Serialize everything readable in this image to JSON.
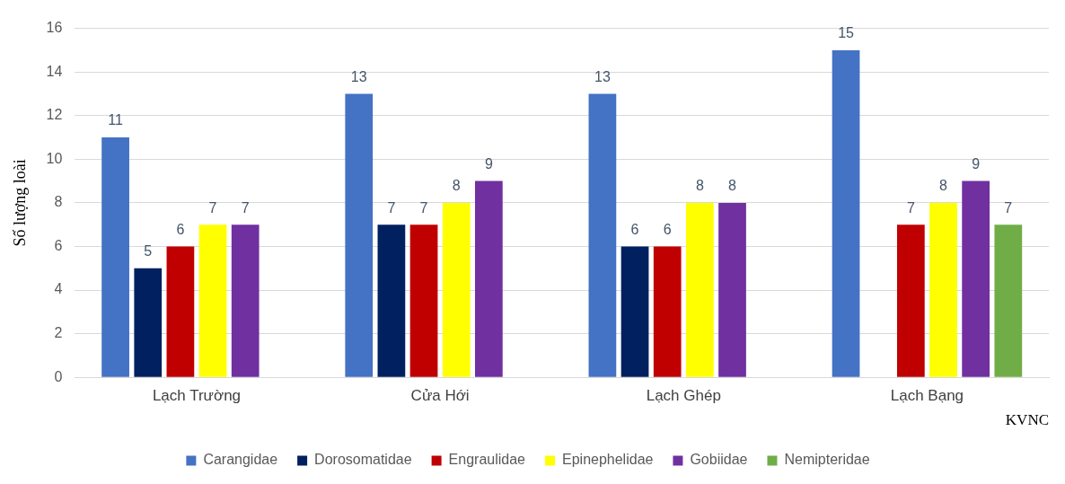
{
  "chart_data": {
    "type": "bar",
    "ylabel": "Số lượng loài",
    "xlabel": "KVNC",
    "categories": [
      "Lạch Trường",
      "Cửa Hới",
      "Lạch Ghép",
      "Lạch Bạng"
    ],
    "series": [
      {
        "name": "Carangidae",
        "color": "#4472c4",
        "values": [
          11,
          13,
          13,
          15
        ]
      },
      {
        "name": "Dorosomatidae",
        "color": "#002060",
        "values": [
          5,
          7,
          6,
          null
        ]
      },
      {
        "name": "Engraulidae",
        "color": "#c00000",
        "values": [
          6,
          7,
          6,
          7
        ]
      },
      {
        "name": "Epinephelidae",
        "color": "#ffff00",
        "values": [
          7,
          8,
          8,
          8
        ]
      },
      {
        "name": "Gobiidae",
        "color": "#7030a0",
        "values": [
          7,
          9,
          8,
          9
        ]
      },
      {
        "name": "Nemipteridae",
        "color": "#70ad47",
        "values": [
          null,
          null,
          null,
          7
        ]
      }
    ],
    "ylim": [
      0,
      16
    ],
    "yticks": [
      0,
      2,
      4,
      6,
      8,
      10,
      12,
      14,
      16
    ],
    "grid": "y",
    "legend": "bottom",
    "data_labels": true
  }
}
